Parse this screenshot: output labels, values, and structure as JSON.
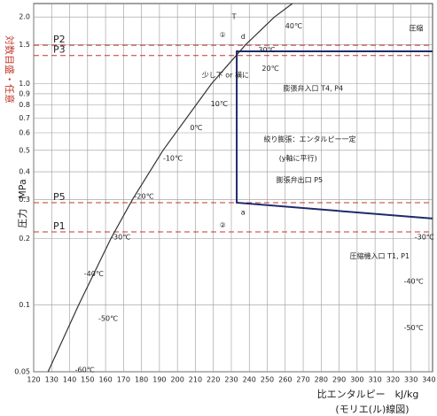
{
  "chart_data": {
    "type": "line",
    "xlabel": "比エンタルピー　kJ/kg",
    "ylabel": "圧力　MPa",
    "ylabel_note": "対数目盛・任意",
    "caption": "(モリエ(ル)線図)",
    "xlim": [
      120,
      342
    ],
    "ylim": [
      0.05,
      2.3
    ],
    "ylog": true,
    "grid": true,
    "xticks": [
      120,
      130,
      140,
      150,
      160,
      170,
      180,
      190,
      200,
      210,
      220,
      230,
      240,
      250,
      260,
      270,
      280,
      290,
      300,
      310,
      320,
      330,
      340
    ],
    "yticks": [
      {
        "value": 2,
        "label": "2.0"
      },
      1.5,
      {
        "value": 1,
        "label": "1.0"
      },
      0.9,
      0.8,
      0.7,
      0.6,
      0.5,
      0.4,
      0.3,
      0.2,
      0.1,
      0.05
    ],
    "series": [
      {
        "color": "#333333",
        "x": [
          128,
          145,
          163,
          175,
          192,
          219,
          238,
          254,
          264
        ],
        "values": [
          0.05,
          0.1,
          0.2,
          0.3,
          0.5,
          1.0,
          1.5,
          2.0,
          2.3
        ]
      },
      {
        "color": "#1f2a6b",
        "x": [
          342,
          233,
          233,
          342
        ],
        "values": [
          1.4,
          1.4,
          0.29,
          0.246
        ]
      }
    ],
    "pressure_lines_color": "#c0392b",
    "pressure_lines": [
      {
        "label": "P2",
        "value": 1.49
      },
      {
        "label": "P3",
        "value": 1.34
      },
      {
        "label": "P5",
        "value": 0.29
      },
      {
        "label": "P1",
        "value": 0.214
      }
    ],
    "temperature_labels": [
      {
        "label": "40℃",
        "x": 260,
        "y": 1.82
      },
      {
        "label": "30℃",
        "x": 245,
        "y": 1.42
      },
      {
        "label": "20℃",
        "x": 247,
        "y": 1.17
      },
      {
        "label": "10℃",
        "x": 218.5,
        "y": 0.81
      },
      {
        "label": "0℃",
        "x": 207,
        "y": 0.63
      },
      {
        "label": "-10℃",
        "x": 192,
        "y": 0.46
      },
      {
        "label": "-20℃",
        "x": 176,
        "y": 0.31
      },
      {
        "label": "-30℃",
        "x": 163,
        "y": 0.203
      },
      {
        "label": "-40℃",
        "x": 148,
        "y": 0.138
      },
      {
        "label": "-50℃",
        "x": 156,
        "y": 0.087
      },
      {
        "label": "-60℃",
        "x": 143,
        "y": 0.051
      },
      {
        "label": "-30℃",
        "x": 332,
        "y": 0.203
      },
      {
        "label": "-40℃",
        "x": 326,
        "y": 0.128
      },
      {
        "label": "-50℃",
        "x": 326,
        "y": 0.079
      }
    ],
    "annotations": [
      {
        "text": "T",
        "x": 230.3,
        "y": 2.0,
        "color": "#c0392b"
      },
      {
        "text": "①",
        "x": 223.4,
        "y": 1.66,
        "color": "#2e8b57"
      },
      {
        "text": "d",
        "x": 235.3,
        "y": 1.63,
        "color": "#1f2a6b"
      },
      {
        "text": "少し下 or 横に",
        "x": 213.6,
        "y": 1.09,
        "color": "#c0392b"
      },
      {
        "text": "膨張弁入口 T4, P4",
        "x": 258.9,
        "y": 0.95,
        "color": "#1f2a6b"
      },
      {
        "text": "絞り膨張：エンタルピー一定",
        "x": 248,
        "y": 0.56,
        "color": "#2e8b57"
      },
      {
        "text": "(y軸に平行)",
        "x": 256.5,
        "y": 0.46,
        "color": "#2e8b57"
      },
      {
        "text": "膨張弁出口 P5",
        "x": 255,
        "y": 0.366,
        "color": "#1f2a6b"
      },
      {
        "text": "a",
        "x": 235.3,
        "y": 0.262,
        "color": "#1f2a6b"
      },
      {
        "text": "②",
        "x": 223.4,
        "y": 0.229,
        "color": "#2e8b57"
      },
      {
        "text": "圧縮機入口 T1, P1",
        "x": 295.9,
        "y": 0.166,
        "color": "#1f2a6b"
      },
      {
        "text": "圧縮",
        "x": 328.9,
        "y": 1.78,
        "color": "#1f2a6b"
      }
    ]
  }
}
